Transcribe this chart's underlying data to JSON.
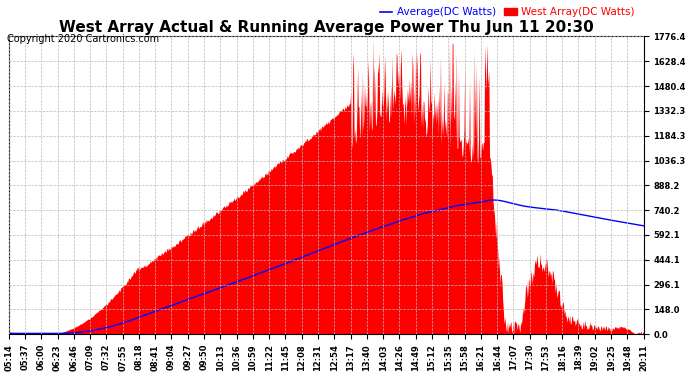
{
  "title": "West Array Actual & Running Average Power Thu Jun 11 20:30",
  "copyright": "Copyright 2020 Cartronics.com",
  "legend_avg": "Average(DC Watts)",
  "legend_west": "West Array(DC Watts)",
  "background_color": "#ffffff",
  "plot_bg_color": "#ffffff",
  "grid_color": "#bbbbbb",
  "fill_color": "red",
  "line_color": "blue",
  "yticks": [
    0.0,
    148.0,
    296.1,
    444.1,
    592.1,
    740.2,
    888.2,
    1036.3,
    1184.3,
    1332.3,
    1480.4,
    1628.4,
    1776.4
  ],
  "ylim": [
    0,
    1776.4
  ],
  "xtick_labels": [
    "05:14",
    "05:37",
    "06:00",
    "06:23",
    "06:46",
    "07:09",
    "07:32",
    "07:55",
    "08:18",
    "08:41",
    "09:04",
    "09:27",
    "09:50",
    "10:13",
    "10:36",
    "10:59",
    "11:22",
    "11:45",
    "12:08",
    "12:31",
    "12:54",
    "13:17",
    "13:40",
    "14:03",
    "14:26",
    "14:49",
    "15:12",
    "15:35",
    "15:58",
    "16:21",
    "16:44",
    "17:07",
    "17:30",
    "17:53",
    "18:16",
    "18:39",
    "19:02",
    "19:25",
    "19:48",
    "20:11"
  ],
  "title_fontsize": 11,
  "copyright_fontsize": 7,
  "tick_fontsize": 6,
  "legend_fontsize": 7.5,
  "figsize": [
    6.9,
    3.75
  ],
  "dpi": 100
}
